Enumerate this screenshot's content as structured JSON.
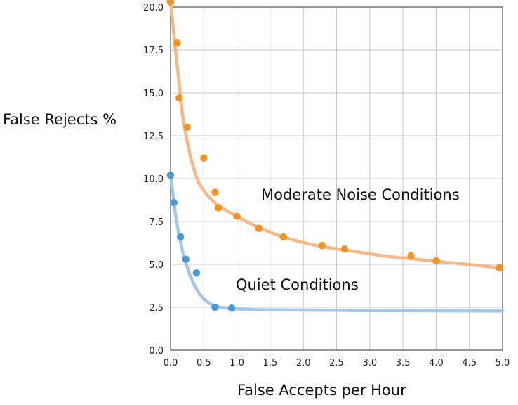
{
  "chart_data": {
    "type": "scatter",
    "xlabel": "False Accepts per Hour",
    "ylabel": "False Rejects %",
    "xlim": [
      0,
      5
    ],
    "ylim": [
      0,
      20
    ],
    "xticks": [
      "0.0",
      "0.5",
      "1.0",
      "1.5",
      "2.0",
      "2.5",
      "3.0",
      "3.5",
      "4.0",
      "4.5",
      "5.0"
    ],
    "yticks": [
      "0.0",
      "2.5",
      "5.0",
      "7.5",
      "10.0",
      "12.5",
      "15.0",
      "17.5",
      "20.0"
    ],
    "grid": true,
    "series": [
      {
        "name": "Moderate Noise Conditions",
        "color": "#f39322",
        "curve_color": "#f4b98a",
        "points": [
          [
            0.0,
            20.3
          ],
          [
            0.1,
            17.9
          ],
          [
            0.13,
            14.7
          ],
          [
            0.25,
            13.0
          ],
          [
            0.5,
            11.2
          ],
          [
            0.67,
            9.2
          ],
          [
            0.72,
            8.3
          ],
          [
            1.0,
            7.8
          ],
          [
            1.33,
            7.1
          ],
          [
            1.7,
            6.6
          ],
          [
            2.28,
            6.1
          ],
          [
            2.62,
            5.9
          ],
          [
            3.62,
            5.5
          ],
          [
            4.0,
            5.2
          ],
          [
            4.95,
            4.8
          ]
        ],
        "curve": [
          [
            0.0,
            20.3
          ],
          [
            0.05,
            18.4
          ],
          [
            0.1,
            16.6
          ],
          [
            0.15,
            14.8
          ],
          [
            0.2,
            13.2
          ],
          [
            0.3,
            11.3
          ],
          [
            0.4,
            10.0
          ],
          [
            0.5,
            9.3
          ],
          [
            0.7,
            8.5
          ],
          [
            1.0,
            7.8
          ],
          [
            1.3,
            7.2
          ],
          [
            1.7,
            6.6
          ],
          [
            2.2,
            6.1
          ],
          [
            2.7,
            5.8
          ],
          [
            3.2,
            5.5
          ],
          [
            3.7,
            5.3
          ],
          [
            4.2,
            5.1
          ],
          [
            4.6,
            4.95
          ],
          [
            4.95,
            4.8
          ]
        ]
      },
      {
        "name": "Quiet Conditions",
        "color": "#4a98d8",
        "curve_color": "#a6c8e8",
        "points": [
          [
            0.0,
            10.2
          ],
          [
            0.05,
            8.6
          ],
          [
            0.15,
            6.6
          ],
          [
            0.23,
            5.3
          ],
          [
            0.39,
            4.5
          ],
          [
            0.67,
            2.5
          ],
          [
            0.92,
            2.45
          ]
        ],
        "curve": [
          [
            0.0,
            10.3
          ],
          [
            0.05,
            8.6
          ],
          [
            0.1,
            7.3
          ],
          [
            0.15,
            6.3
          ],
          [
            0.2,
            5.5
          ],
          [
            0.3,
            4.3
          ],
          [
            0.4,
            3.5
          ],
          [
            0.5,
            3.0
          ],
          [
            0.6,
            2.7
          ],
          [
            0.7,
            2.55
          ],
          [
            0.85,
            2.45
          ],
          [
            1.0,
            2.4
          ],
          [
            1.5,
            2.35
          ],
          [
            2.5,
            2.32
          ],
          [
            3.5,
            2.3
          ],
          [
            5.0,
            2.28
          ]
        ]
      }
    ]
  }
}
